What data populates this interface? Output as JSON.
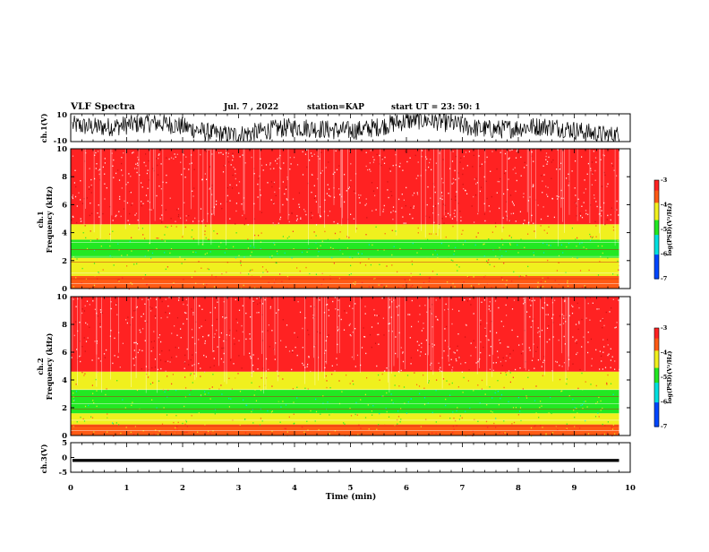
{
  "header": {
    "title": "VLF Spectra",
    "date": "Jul. 7 , 2022",
    "station": "station=KAP",
    "start": "start UT = 23: 50: 1"
  },
  "colors": {
    "spectrogram_bg": "#ef2b2b",
    "band_yellow": "#e8e81e",
    "band_green": "#2ee82e",
    "waveform": "#000000"
  },
  "chart_data": [
    {
      "type": "line",
      "panel": "ch1-waveform",
      "ylabel": "ch.1(V)",
      "ylim": [
        -10,
        10
      ],
      "yticks": [
        "10",
        "-10"
      ],
      "x_range_min": [
        0,
        9.8
      ],
      "description_values": "noisy waveform oscillating roughly between -9 and +9 V"
    },
    {
      "type": "heatmap",
      "panel": "ch1-spectrogram",
      "ylabel": "ch.1",
      "ylabel2": "Frequency (kHz)",
      "ylim": [
        0,
        10
      ],
      "yticks": [
        "0",
        "2",
        "4",
        "6",
        "8",
        "10"
      ],
      "colorbar": {
        "label": "log(PSD)(V²/Hz)",
        "range": [
          -7,
          -3
        ],
        "ticks": [
          "-3",
          "-4",
          "-5",
          "-6",
          "-7"
        ]
      },
      "bands": [
        {
          "from_khz": 0.0,
          "to_khz": 0.9,
          "level": -3.6
        },
        {
          "from_khz": 0.9,
          "to_khz": 2.2,
          "level": -4.2
        },
        {
          "from_khz": 2.2,
          "to_khz": 3.5,
          "level": -4.8
        },
        {
          "from_khz": 3.5,
          "to_khz": 4.6,
          "level": -4.0
        },
        {
          "from_khz": 4.6,
          "to_khz": 10.0,
          "level": -3.2
        }
      ]
    },
    {
      "type": "heatmap",
      "panel": "ch2-spectrogram",
      "ylabel": "ch.2",
      "ylabel2": "Frequency (kHz)",
      "ylim": [
        0,
        10
      ],
      "yticks": [
        "0",
        "2",
        "4",
        "6",
        "8",
        "10"
      ],
      "colorbar": {
        "label": "log(PSD)(V²/Hz)",
        "range": [
          -7,
          -3
        ],
        "ticks": [
          "-3",
          "-4",
          "-5",
          "-6",
          "-7"
        ]
      },
      "bands": [
        {
          "from_khz": 0.0,
          "to_khz": 0.8,
          "level": -3.7
        },
        {
          "from_khz": 0.8,
          "to_khz": 1.6,
          "level": -4.4
        },
        {
          "from_khz": 1.6,
          "to_khz": 3.3,
          "level": -4.9
        },
        {
          "from_khz": 3.3,
          "to_khz": 4.6,
          "level": -4.0
        },
        {
          "from_khz": 4.6,
          "to_khz": 10.0,
          "level": -3.2
        }
      ]
    },
    {
      "type": "line",
      "panel": "ch3-waveform",
      "ylabel": "ch.3(V)",
      "ylim": [
        -5,
        5
      ],
      "yticks": [
        "5",
        "0",
        "-5"
      ],
      "level_v": -1.0,
      "thickness_v": 1.0
    }
  ],
  "xaxis": {
    "label": "Time (min)",
    "range": [
      0,
      10
    ],
    "ticks": [
      "0",
      "1",
      "2",
      "3",
      "4",
      "5",
      "6",
      "7",
      "8",
      "9",
      "10"
    ],
    "data_end": 9.8
  }
}
